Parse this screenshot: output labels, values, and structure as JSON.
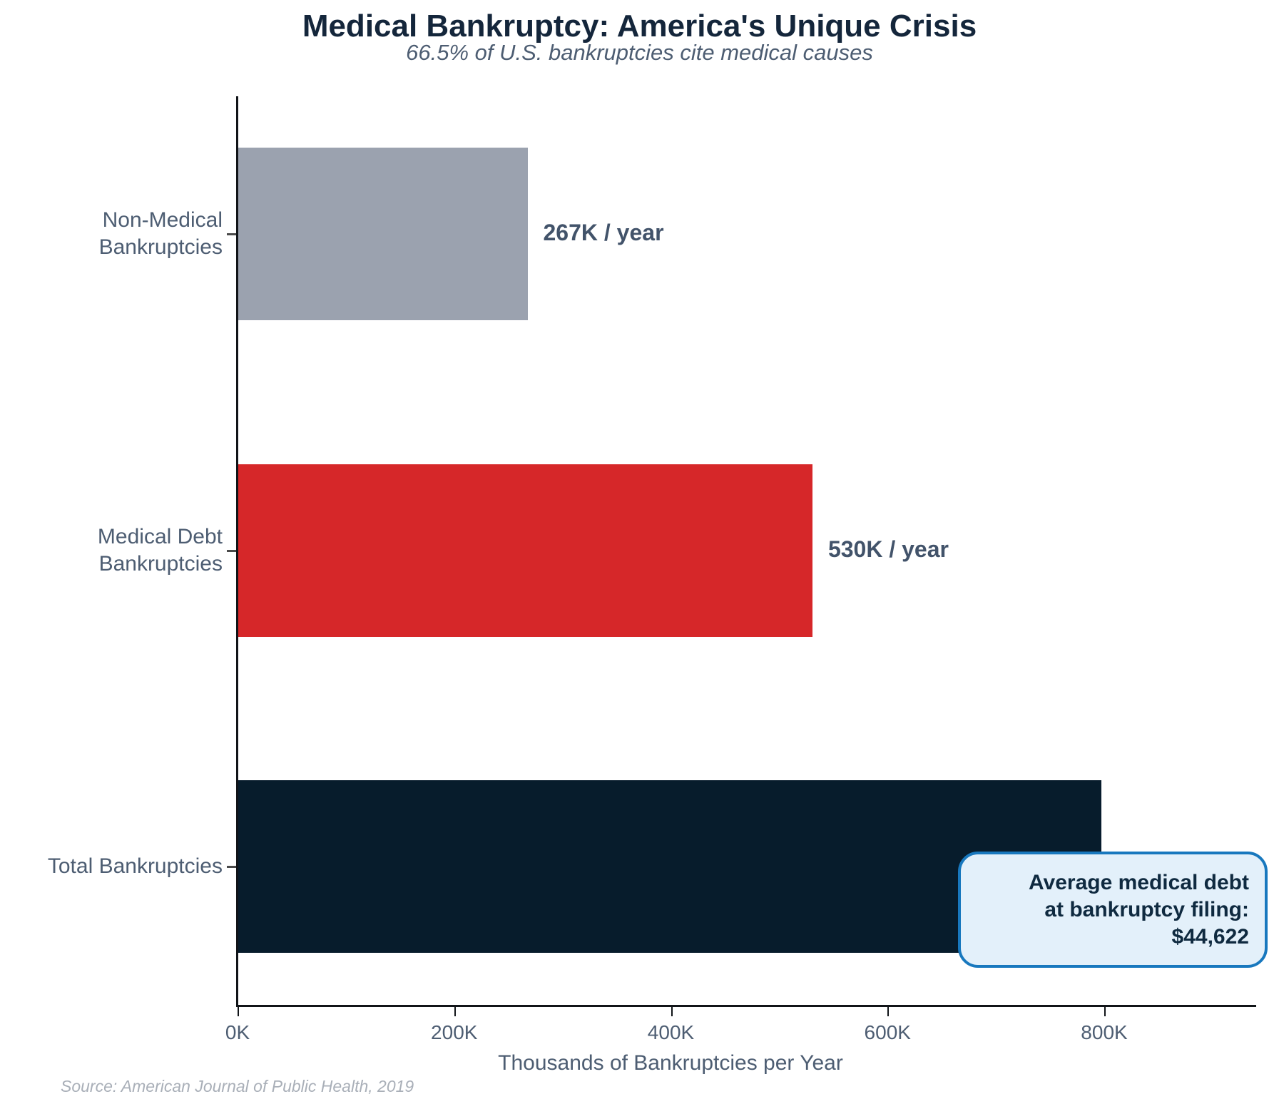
{
  "title": "Medical Bankruptcy: America's Unique Crisis",
  "subtitle": "66.5% of U.S. bankruptcies cite medical causes",
  "source": "Source: American Journal of Public Health, 2019",
  "annotation": {
    "lines": [
      "Average medical debt",
      "at bankruptcy filing:",
      "$44,622"
    ]
  },
  "colors": {
    "title_text": "#14263B",
    "label_text": "#4D5D72",
    "value_text": "#42536A",
    "annotation_fill": "#E3F0FA",
    "annotation_border": "#1878BE",
    "annotation_text": "#0F2A40",
    "source_text": "#A9AFB8",
    "axis": "#111418"
  },
  "chart_data": {
    "type": "bar",
    "orientation": "horizontal",
    "title": "Medical Bankruptcy: America's Unique Crisis",
    "subtitle": "66.5% of U.S. bankruptcies cite medical causes",
    "categories": [
      "Non-Medical\nBankruptcies",
      "Medical Debt\nBankruptcies",
      "Total Bankruptcies"
    ],
    "category_slugs": [
      "non-medical",
      "medical-debt",
      "total"
    ],
    "values": [
      267,
      530,
      797
    ],
    "value_labels": [
      "267K / year",
      "530K / year",
      null
    ],
    "bar_colors": [
      "#9BA2AF",
      "#D62729",
      "#071C2C"
    ],
    "xlabel": "Thousands of Bankruptcies per Year",
    "ylabel": "",
    "xlim": [
      0,
      940
    ],
    "x_ticks": [
      0,
      200,
      400,
      600,
      800
    ],
    "x_tick_labels": [
      "0K",
      "200K",
      "400K",
      "600K",
      "800K"
    ],
    "grid": false,
    "legend": null,
    "units": "thousands of bankruptcies per year"
  }
}
